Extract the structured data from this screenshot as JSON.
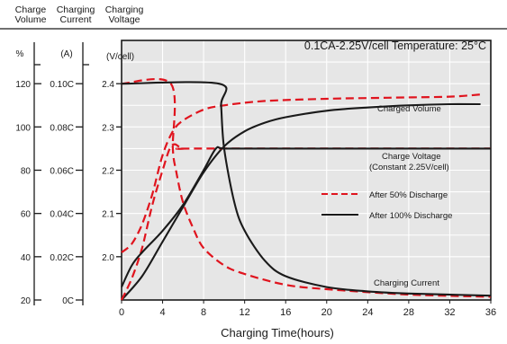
{
  "header": {
    "col1": [
      "Charge",
      "Volume"
    ],
    "col2": [
      "Charging",
      "Current"
    ],
    "col3": [
      "Charging",
      "Voltage"
    ]
  },
  "chart_data": {
    "type": "line",
    "title": "0.1CA-2.25V/cell   Temperature: 25°C",
    "xlabel": "Charging Time(hours)",
    "xlim": [
      0,
      36
    ],
    "x_ticks": [
      "0",
      "4",
      "8",
      "12",
      "16",
      "20",
      "24",
      "28",
      "32",
      "36"
    ],
    "grid": true,
    "axes": {
      "volume": {
        "unit": "%",
        "ticks": [
          "120",
          "100",
          "80",
          "60",
          "40",
          "20"
        ],
        "range": [
          20,
          140
        ]
      },
      "current": {
        "unit": "(A)",
        "ticks": [
          "0.10C",
          "0.08C",
          "0.06C",
          "0.04C",
          "0.02C",
          "0C"
        ],
        "range": [
          0,
          0.12
        ]
      },
      "voltage": {
        "unit": "(V/cell)",
        "ticks": [
          "2.4",
          "2.3",
          "2.2",
          "2.1",
          "2.0"
        ],
        "range": [
          1.9,
          2.5
        ]
      }
    },
    "legend": {
      "position": "right",
      "entries": [
        {
          "label": "After 50% Discharge",
          "style": "dashed",
          "color": "#e0141e"
        },
        {
          "label": "After 100% Discharge",
          "style": "solid",
          "color": "#1a1a1a"
        }
      ]
    },
    "annotations": [
      "Charged Volume",
      "Charge Voltage",
      "(Constant 2.25V/cell)",
      "Charging Current"
    ],
    "series": [
      {
        "quantity": "charged volume",
        "axis": "volume",
        "style": "dashed",
        "color": "#e0141e",
        "x": [
          0,
          1,
          2,
          3,
          4,
          5,
          6,
          8,
          10,
          14,
          20,
          26,
          32,
          35
        ],
        "y": [
          42,
          46,
          55,
          69,
          87,
          98,
          103,
          108,
          110,
          112,
          113,
          113.5,
          114,
          115
        ]
      },
      {
        "quantity": "charged volume",
        "axis": "volume",
        "style": "solid",
        "color": "#1a1a1a",
        "x": [
          0,
          2,
          4,
          6,
          8,
          10,
          12,
          14,
          16,
          20,
          24,
          28,
          32,
          35
        ],
        "y": [
          20,
          31,
          47,
          63,
          79,
          91,
          98,
          102,
          104.5,
          107.5,
          109,
          110,
          110.5,
          110.5
        ]
      },
      {
        "quantity": "charge voltage",
        "axis": "voltage",
        "style": "dashed",
        "color": "#e0141e",
        "x": [
          0,
          1,
          2,
          3,
          4,
          4.7,
          5.2,
          6,
          8,
          36
        ],
        "y": [
          1.9,
          1.95,
          2.02,
          2.12,
          2.2,
          2.25,
          2.26,
          2.25,
          2.25,
          2.25
        ]
      },
      {
        "quantity": "charge voltage",
        "axis": "voltage",
        "style": "solid",
        "color": "#1a1a1a",
        "x": [
          0,
          1,
          2,
          4,
          6,
          8,
          9.2,
          10,
          14,
          20,
          28,
          36
        ],
        "y": [
          1.93,
          1.98,
          2.01,
          2.06,
          2.12,
          2.2,
          2.25,
          2.25,
          2.25,
          2.25,
          2.25,
          2.25
        ]
      },
      {
        "quantity": "charging current",
        "axis": "current",
        "style": "dashed",
        "color": "#e0141e",
        "x": [
          0,
          4.8,
          5.0,
          5.3,
          6,
          7,
          8,
          10,
          12,
          16,
          20,
          28,
          36
        ],
        "y": [
          0.1,
          0.1,
          0.07,
          0.06,
          0.045,
          0.033,
          0.024,
          0.016,
          0.012,
          0.007,
          0.005,
          0.0025,
          0.0015
        ]
      },
      {
        "quantity": "charging current",
        "axis": "current",
        "style": "solid",
        "color": "#1a1a1a",
        "x": [
          0,
          9.5,
          9.7,
          10,
          11,
          12,
          14,
          16,
          20,
          24,
          28,
          36
        ],
        "y": [
          0.1,
          0.1,
          0.09,
          0.07,
          0.045,
          0.032,
          0.018,
          0.011,
          0.006,
          0.004,
          0.003,
          0.002
        ]
      }
    ]
  }
}
